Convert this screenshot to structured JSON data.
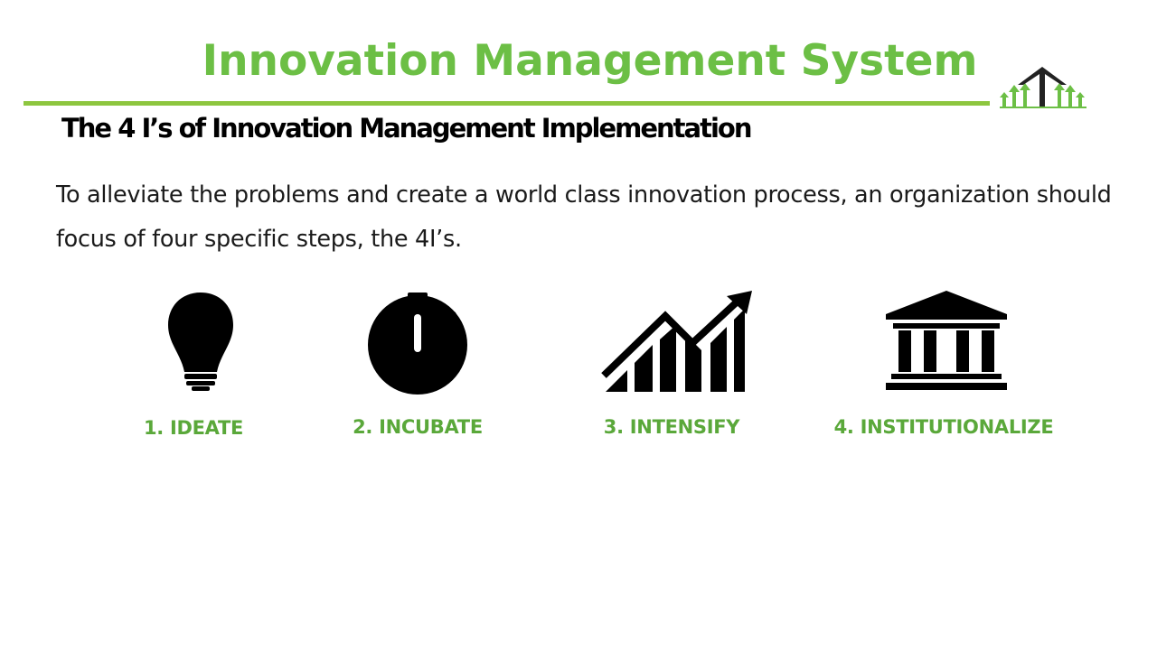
{
  "header": {
    "title": "Innovation Management System",
    "subtitle": "The 4 I’s of Innovation Management Implementation"
  },
  "intro": {
    "text": "To alleviate the problems and create a world  class innovation process, an organization should focus of four specific steps, the 4I’s."
  },
  "steps": [
    {
      "label": "1. IDEATE",
      "icon": "lightbulb-icon"
    },
    {
      "label": "2. INCUBATE",
      "icon": "stopwatch-icon"
    },
    {
      "label": "3. INTENSIFY",
      "icon": "growth-chart-icon"
    },
    {
      "label": "4. INSTITUTIONALIZE",
      "icon": "institution-building-icon"
    }
  ],
  "colors": {
    "title_green": "#6cbf45",
    "label_green": "#5aa83a",
    "rule_green": "#8dc63f",
    "icon_black": "#000000"
  }
}
